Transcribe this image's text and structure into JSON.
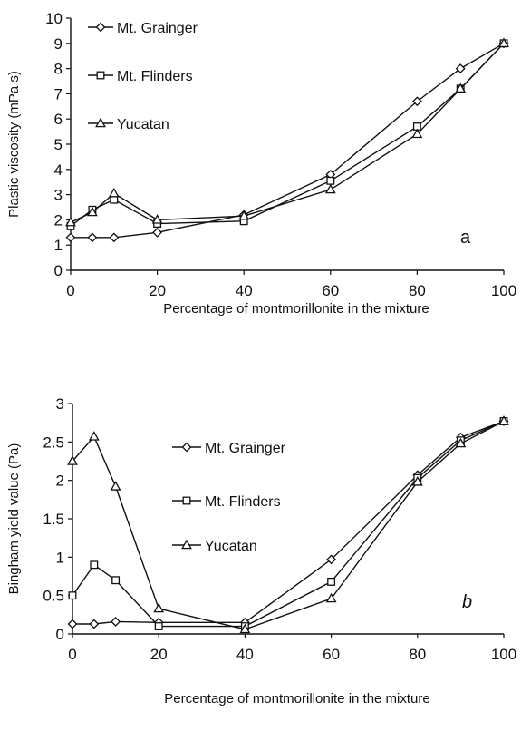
{
  "chart_data": [
    {
      "type": "line",
      "panel_label": "a",
      "title": "",
      "xlabel": "Percentage of montmorillonite in the mixture",
      "ylabel": "Plastic viscosity (mPa s)",
      "xlim": [
        0,
        100
      ],
      "ylim": [
        0,
        10
      ],
      "xticks": [
        0,
        20,
        40,
        60,
        80,
        100
      ],
      "yticks": [
        0,
        1,
        2,
        3,
        4,
        5,
        6,
        7,
        8,
        9,
        10
      ],
      "grid": false,
      "legend_position": "top-left",
      "series": [
        {
          "name": "Mt. Grainger",
          "marker": "diamond",
          "x": [
            0,
            5,
            10,
            20,
            40,
            60,
            80,
            90,
            100
          ],
          "y": [
            1.3,
            1.3,
            1.3,
            1.5,
            2.2,
            3.8,
            6.7,
            8.0,
            9.0
          ]
        },
        {
          "name": "Mt. Flinders",
          "marker": "square",
          "x": [
            0,
            5,
            10,
            20,
            40,
            60,
            80,
            90,
            100
          ],
          "y": [
            1.75,
            2.4,
            2.8,
            1.85,
            1.95,
            3.55,
            5.7,
            7.2,
            9.0
          ]
        },
        {
          "name": "Yucatan",
          "marker": "triangle",
          "x": [
            0,
            5,
            10,
            20,
            40,
            60,
            80,
            90,
            100
          ],
          "y": [
            1.9,
            2.3,
            3.05,
            2.0,
            2.15,
            3.2,
            5.4,
            7.2,
            9.0
          ]
        }
      ]
    },
    {
      "type": "line",
      "panel_label": "b",
      "title": "",
      "xlabel": "Percentage of montmorillonite in the mixture",
      "ylabel": "Bingham yield value (Pa)",
      "xlim": [
        0,
        100
      ],
      "ylim": [
        0,
        3
      ],
      "xticks": [
        0,
        20,
        40,
        60,
        80,
        100
      ],
      "yticks": [
        0,
        0.5,
        1,
        1.5,
        2,
        2.5,
        3
      ],
      "ytick_labels": [
        "0",
        "0.5",
        "1",
        "1.5",
        "2",
        "2.5",
        "3"
      ],
      "grid": false,
      "legend_position": "top-center",
      "series": [
        {
          "name": "Mt. Grainger",
          "marker": "diamond",
          "x": [
            0,
            5,
            10,
            20,
            40,
            60,
            80,
            90,
            100
          ],
          "y": [
            0.13,
            0.13,
            0.16,
            0.15,
            0.15,
            0.97,
            2.07,
            2.56,
            2.77
          ]
        },
        {
          "name": "Mt. Flinders",
          "marker": "square",
          "x": [
            0,
            5,
            10,
            20,
            40,
            60,
            80,
            90,
            100
          ],
          "y": [
            0.5,
            0.9,
            0.7,
            0.1,
            0.1,
            0.68,
            2.03,
            2.52,
            2.77
          ]
        },
        {
          "name": "Yucatan",
          "marker": "triangle",
          "x": [
            0,
            5,
            10,
            20,
            40,
            60,
            80,
            90,
            100
          ],
          "y": [
            2.25,
            2.57,
            1.92,
            0.33,
            0.06,
            0.46,
            1.98,
            2.48,
            2.77
          ]
        }
      ]
    }
  ]
}
